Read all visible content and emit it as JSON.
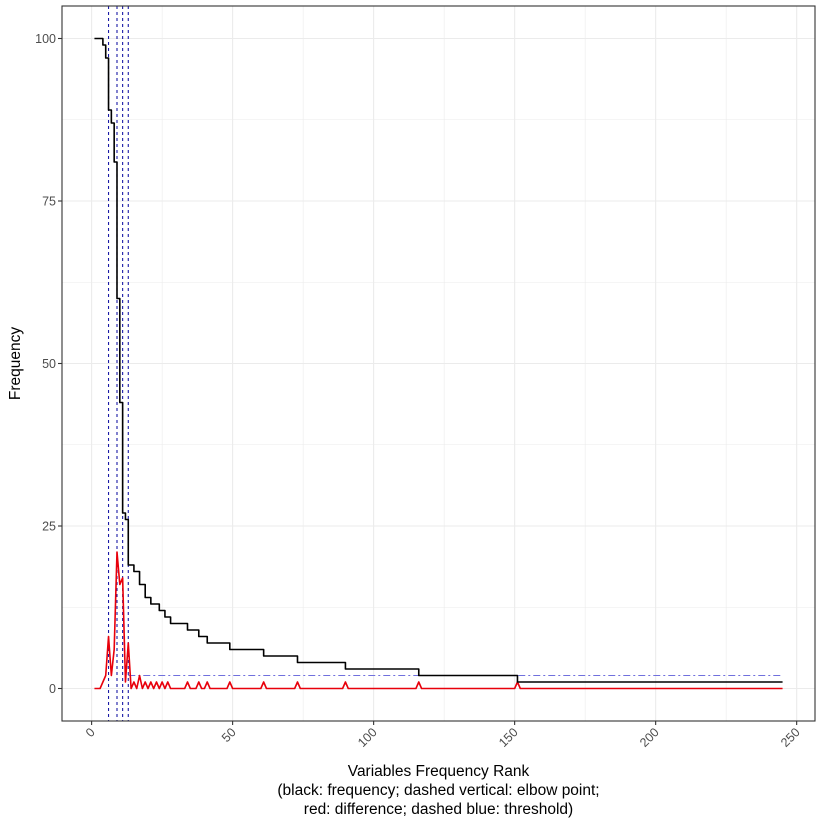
{
  "chart_data": {
    "type": "line",
    "title": "",
    "xlabel": "Variables Frequency Rank",
    "xlabel_note_lines": [
      "(black: frequency; dashed vertical: elbow point;",
      "red: difference; dashed blue: threshold)"
    ],
    "ylabel": "Frequency",
    "xlim": [
      -10.5,
      256.5
    ],
    "ylim": [
      -5,
      105
    ],
    "x_ticks": [
      0,
      50,
      100,
      150,
      200,
      250
    ],
    "x_tick_labels": [
      "0",
      "50",
      "100",
      "150",
      "200",
      "250"
    ],
    "y_ticks": [
      0,
      25,
      50,
      75,
      100
    ],
    "y_tick_labels": [
      "0",
      "25",
      "50",
      "75",
      "100"
    ],
    "grid": true,
    "legend": "none",
    "colors": {
      "frequency": "#000000",
      "difference": "#e8000b",
      "elbow": "#1a1aa6",
      "threshold": "#7070dd",
      "grid": "#ebebeb",
      "panel_border": "#333333"
    },
    "series": [
      {
        "key": "frequency",
        "style": "step",
        "x": [
          1,
          2,
          3,
          4,
          5,
          6,
          7,
          8,
          9,
          10,
          11,
          12,
          13,
          14,
          15,
          17,
          19,
          21,
          24,
          26,
          28,
          34,
          38,
          41,
          49,
          61,
          73,
          90,
          116,
          151,
          245
        ],
        "y": [
          100,
          100,
          100,
          99,
          97,
          89,
          87,
          81,
          60,
          44,
          27,
          26,
          19,
          19,
          18,
          16,
          14,
          13,
          12,
          11,
          10,
          9,
          8,
          7,
          6,
          5,
          4,
          3,
          2,
          1,
          1
        ]
      },
      {
        "key": "difference",
        "style": "line",
        "x": [
          1,
          3,
          4,
          5,
          6,
          7,
          8,
          9,
          10,
          11,
          12,
          13,
          14,
          15,
          16,
          17,
          18,
          19,
          20,
          21,
          22,
          23,
          24,
          25,
          26,
          27,
          28,
          29,
          33,
          34,
          35,
          37,
          38,
          39,
          40,
          41,
          42,
          48,
          49,
          50,
          60,
          61,
          62,
          72,
          73,
          74,
          89,
          90,
          91,
          115,
          116,
          117,
          150,
          151,
          152,
          245
        ],
        "y": [
          0,
          0,
          1,
          2,
          8,
          2,
          6,
          21,
          16,
          17,
          1,
          7,
          0,
          1,
          0,
          2,
          0,
          1,
          0,
          1,
          0,
          1,
          0,
          1,
          0,
          1,
          0,
          0,
          0,
          1,
          0,
          0,
          1,
          0,
          0,
          1,
          0,
          0,
          1,
          0,
          0,
          1,
          0,
          0,
          1,
          0,
          0,
          1,
          0,
          0,
          1,
          0,
          0,
          1,
          0,
          0
        ]
      }
    ],
    "vertical_lines": [
      6,
      9,
      11,
      13
    ],
    "threshold_line": {
      "y": 2,
      "x_from": 13,
      "x_to": 245
    }
  }
}
